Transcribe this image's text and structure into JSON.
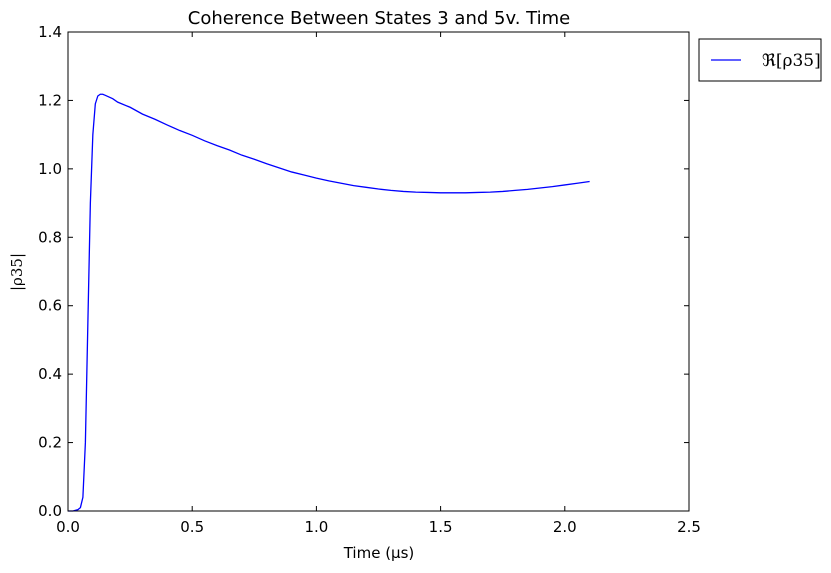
{
  "chart_data": {
    "type": "line",
    "title": "Coherence Between States 3 and 5v. Time",
    "xlabel": "Time (μs)",
    "ylabel": "|ρ35|",
    "xlim": [
      0.0,
      2.5
    ],
    "ylim": [
      0.0,
      1.4
    ],
    "x_ticks": [
      0.0,
      0.5,
      1.0,
      1.5,
      2.0,
      2.5
    ],
    "x_tick_labels": [
      "0.0",
      "0.5",
      "1.0",
      "1.5",
      "2.0",
      "2.5"
    ],
    "y_ticks": [
      0.0,
      0.2,
      0.4,
      0.6,
      0.8,
      1.0,
      1.2,
      1.4
    ],
    "y_tick_labels": [
      "0.0",
      "0.2",
      "0.4",
      "0.6",
      "0.8",
      "1.0",
      "1.2",
      "1.4"
    ],
    "grid": false,
    "legend_position": "outside-top-right",
    "series": [
      {
        "name": "ℜ[ρ35]",
        "color": "#0000ff",
        "x": [
          0.0,
          0.02,
          0.04,
          0.05,
          0.06,
          0.07,
          0.08,
          0.09,
          0.1,
          0.11,
          0.12,
          0.13,
          0.14,
          0.15,
          0.18,
          0.2,
          0.25,
          0.3,
          0.35,
          0.4,
          0.45,
          0.5,
          0.55,
          0.6,
          0.65,
          0.7,
          0.75,
          0.8,
          0.85,
          0.9,
          0.95,
          1.0,
          1.05,
          1.1,
          1.15,
          1.2,
          1.25,
          1.3,
          1.35,
          1.4,
          1.45,
          1.5,
          1.55,
          1.6,
          1.65,
          1.7,
          1.75,
          1.8,
          1.85,
          1.9,
          1.95,
          2.0,
          2.05,
          2.1
        ],
        "y": [
          0.0,
          0.0,
          0.004,
          0.01,
          0.04,
          0.2,
          0.55,
          0.9,
          1.1,
          1.19,
          1.213,
          1.218,
          1.218,
          1.215,
          1.205,
          1.195,
          1.18,
          1.16,
          1.145,
          1.128,
          1.112,
          1.098,
          1.082,
          1.068,
          1.055,
          1.04,
          1.028,
          1.015,
          1.003,
          0.991,
          0.982,
          0.973,
          0.965,
          0.958,
          0.951,
          0.946,
          0.941,
          0.937,
          0.934,
          0.932,
          0.931,
          0.93,
          0.93,
          0.93,
          0.931,
          0.932,
          0.934,
          0.937,
          0.94,
          0.944,
          0.948,
          0.953,
          0.958,
          0.963
        ]
      }
    ]
  }
}
